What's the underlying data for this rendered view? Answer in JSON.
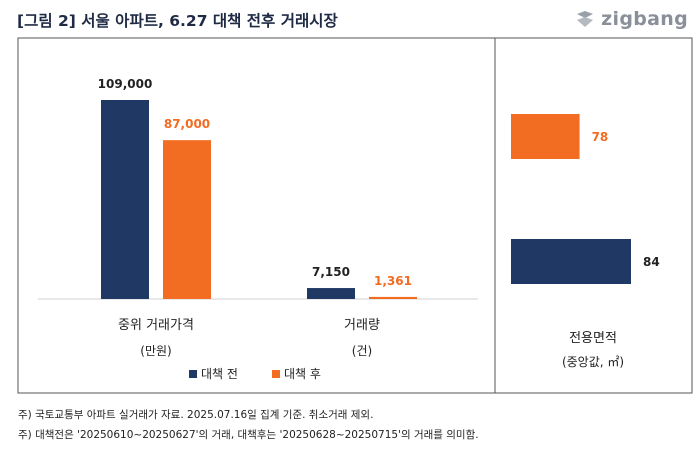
{
  "title": "[그림 2] 서울 아파트,  6.27 대책 전후 거래시장",
  "logo": {
    "text": "zigbang",
    "icon": "zigbang-logo-icon"
  },
  "colors": {
    "before": "#1f3864",
    "after": "#f26c21",
    "title": "#1f2a44",
    "border": "#555555"
  },
  "chart_data": [
    {
      "type": "bar",
      "orientation": "vertical",
      "categories": [
        "중위 거래가격",
        "거래량"
      ],
      "category_units": [
        "(만원)",
        "(건)"
      ],
      "series": [
        {
          "name": "대책 전",
          "values": [
            109000,
            7150
          ],
          "labels": [
            "109,000",
            "7,150"
          ]
        },
        {
          "name": "대책 후",
          "values": [
            87000,
            1361
          ],
          "labels": [
            "87,000",
            "1,361"
          ]
        }
      ],
      "legend": {
        "position": "bottom",
        "items": [
          "대책 전",
          "대책 후"
        ]
      }
    },
    {
      "type": "bar",
      "orientation": "horizontal",
      "category": "전용면적",
      "category_unit": "(중앙값, ㎡)",
      "series": [
        {
          "name": "대책 후",
          "value": 78,
          "label": "78"
        },
        {
          "name": "대책 전",
          "value": 84,
          "label": "84"
        }
      ]
    }
  ],
  "notes": [
    "주) 국토교통부 아파트 실거래가 자료. 2025.07.16일 집계 기준. 취소거래 제외.",
    "주) 대책전은 '20250610~20250627'의 거래, 대책후는 '20250628~20250715'의 거래를 의미함."
  ]
}
